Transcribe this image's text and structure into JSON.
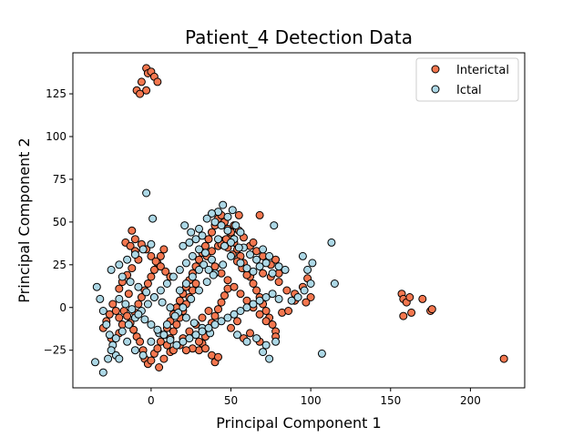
{
  "chart_data": {
    "type": "scatter",
    "title": "Patient_4 Detection Data",
    "xlabel": "Principal Component 1",
    "ylabel": "Principal Component 2",
    "xlim": [
      -49,
      234
    ],
    "ylim": [
      -47,
      149
    ],
    "xticks": [
      0,
      50,
      100,
      150,
      200
    ],
    "yticks": [
      -25,
      0,
      25,
      50,
      75,
      100,
      125
    ],
    "grid": false,
    "legend_position": "top-right",
    "series": [
      {
        "name": "Interictal",
        "color": "#f4774f",
        "points": [
          [
            -3,
            140
          ],
          [
            -2,
            137
          ],
          [
            0,
            138
          ],
          [
            2,
            135
          ],
          [
            4,
            132
          ],
          [
            -6,
            132
          ],
          [
            -9,
            127
          ],
          [
            -3,
            127
          ],
          [
            -7,
            125
          ],
          [
            -17,
            -2
          ],
          [
            -15,
            -5
          ],
          [
            -13,
            -9
          ],
          [
            -11,
            -13
          ],
          [
            -9,
            -17
          ],
          [
            -7,
            -20
          ],
          [
            -5,
            -25
          ],
          [
            -4,
            -30
          ],
          [
            -2,
            -33
          ],
          [
            0,
            -31
          ],
          [
            2,
            -27
          ],
          [
            4,
            -24
          ],
          [
            6,
            -20
          ],
          [
            8,
            -16
          ],
          [
            10,
            -12
          ],
          [
            12,
            -8
          ],
          [
            14,
            -4
          ],
          [
            16,
            0
          ],
          [
            18,
            4
          ],
          [
            20,
            8
          ],
          [
            22,
            12
          ],
          [
            24,
            16
          ],
          [
            26,
            20
          ],
          [
            28,
            24
          ],
          [
            30,
            28
          ],
          [
            32,
            32
          ],
          [
            34,
            36
          ],
          [
            36,
            40
          ],
          [
            38,
            44
          ],
          [
            40,
            48
          ],
          [
            42,
            52
          ],
          [
            44,
            54
          ],
          [
            46,
            50
          ],
          [
            48,
            46
          ],
          [
            50,
            42
          ],
          [
            52,
            38
          ],
          [
            54,
            34
          ],
          [
            56,
            30
          ],
          [
            58,
            26
          ],
          [
            60,
            22
          ],
          [
            62,
            18
          ],
          [
            64,
            14
          ],
          [
            66,
            10
          ],
          [
            68,
            6
          ],
          [
            70,
            2
          ],
          [
            72,
            -2
          ],
          [
            74,
            -6
          ],
          [
            76,
            -10
          ],
          [
            78,
            -14
          ],
          [
            -10,
            -3
          ],
          [
            -8,
            2
          ],
          [
            -6,
            6
          ],
          [
            -4,
            10
          ],
          [
            -2,
            14
          ],
          [
            0,
            18
          ],
          [
            2,
            22
          ],
          [
            4,
            26
          ],
          [
            6,
            30
          ],
          [
            8,
            34
          ],
          [
            10,
            -22
          ],
          [
            12,
            -18
          ],
          [
            14,
            -14
          ],
          [
            16,
            -10
          ],
          [
            18,
            -6
          ],
          [
            20,
            -2
          ],
          [
            22,
            2
          ],
          [
            24,
            6
          ],
          [
            26,
            10
          ],
          [
            28,
            14
          ],
          [
            30,
            -25
          ],
          [
            32,
            -21
          ],
          [
            34,
            -17
          ],
          [
            36,
            -13
          ],
          [
            38,
            -9
          ],
          [
            40,
            -5
          ],
          [
            42,
            -1
          ],
          [
            44,
            3
          ],
          [
            46,
            7
          ],
          [
            48,
            11
          ],
          [
            -18,
            -10
          ],
          [
            -20,
            -6
          ],
          [
            -22,
            -2
          ],
          [
            -24,
            2
          ],
          [
            -26,
            -4
          ],
          [
            -28,
            -8
          ],
          [
            -30,
            -12
          ],
          [
            -25,
            -18
          ],
          [
            -20,
            -15
          ],
          [
            5,
            -35
          ],
          [
            8,
            -30
          ],
          [
            12,
            -26
          ],
          [
            16,
            -22
          ],
          [
            20,
            -18
          ],
          [
            24,
            -14
          ],
          [
            28,
            -10
          ],
          [
            32,
            -6
          ],
          [
            36,
            -2
          ],
          [
            -16,
            38
          ],
          [
            -13,
            36
          ],
          [
            -10,
            33
          ],
          [
            -8,
            28
          ],
          [
            -12,
            23
          ],
          [
            -15,
            19
          ],
          [
            -18,
            15
          ],
          [
            -20,
            11
          ],
          [
            -14,
            8
          ],
          [
            -12,
            45
          ],
          [
            -10,
            40
          ],
          [
            -6,
            37
          ],
          [
            -3,
            34
          ],
          [
            0,
            30
          ],
          [
            3,
            27
          ],
          [
            6,
            24
          ],
          [
            9,
            21
          ],
          [
            12,
            18
          ],
          [
            40,
            24
          ],
          [
            44,
            20
          ],
          [
            48,
            16
          ],
          [
            52,
            12
          ],
          [
            56,
            8
          ],
          [
            60,
            4
          ],
          [
            64,
            0
          ],
          [
            68,
            -4
          ],
          [
            72,
            -8
          ],
          [
            35,
            30
          ],
          [
            38,
            33
          ],
          [
            42,
            36
          ],
          [
            45,
            39
          ],
          [
            48,
            35
          ],
          [
            51,
            31
          ],
          [
            54,
            27
          ],
          [
            57,
            23
          ],
          [
            60,
            19
          ],
          [
            62,
            36
          ],
          [
            64,
            38
          ],
          [
            66,
            33
          ],
          [
            58,
            41
          ],
          [
            55,
            45
          ],
          [
            52,
            48
          ],
          [
            50,
            44
          ],
          [
            47,
            40
          ],
          [
            44,
            37
          ],
          [
            70,
            20
          ],
          [
            75,
            18
          ],
          [
            80,
            15
          ],
          [
            85,
            10
          ],
          [
            90,
            8
          ],
          [
            95,
            12
          ],
          [
            98,
            17
          ],
          [
            100,
            6
          ],
          [
            97,
            3
          ],
          [
            82,
            -3
          ],
          [
            86,
            -2
          ],
          [
            90,
            4
          ],
          [
            78,
            -17
          ],
          [
            68,
            -20
          ],
          [
            62,
            -15
          ],
          [
            58,
            -18
          ],
          [
            54,
            -8
          ],
          [
            50,
            -12
          ],
          [
            30,
            -20
          ],
          [
            34,
            -24
          ],
          [
            38,
            -28
          ],
          [
            40,
            -32
          ],
          [
            42,
            -29
          ],
          [
            26,
            -24
          ],
          [
            22,
            -25
          ],
          [
            18,
            -22
          ],
          [
            14,
            -25
          ],
          [
            68,
            54
          ],
          [
            55,
            54
          ],
          [
            70,
            30
          ],
          [
            75,
            25
          ],
          [
            78,
            28
          ],
          [
            80,
            20
          ],
          [
            157,
            8
          ],
          [
            158,
            5
          ],
          [
            160,
            3
          ],
          [
            162,
            6
          ],
          [
            158,
            -5
          ],
          [
            163,
            -3
          ],
          [
            170,
            5
          ],
          [
            175,
            -2
          ],
          [
            176,
            -1
          ],
          [
            221,
            -30
          ]
        ]
      },
      {
        "name": "Ictal",
        "color": "#add8e6",
        "points": [
          [
            -3,
            67
          ],
          [
            1,
            52
          ],
          [
            45,
            60
          ],
          [
            51,
            57
          ],
          [
            42,
            56
          ],
          [
            48,
            53
          ],
          [
            38,
            55
          ],
          [
            35,
            52
          ],
          [
            40,
            50
          ],
          [
            30,
            46
          ],
          [
            25,
            44
          ],
          [
            21,
            48
          ],
          [
            32,
            42
          ],
          [
            28,
            40
          ],
          [
            24,
            38
          ],
          [
            20,
            36
          ],
          [
            44,
            48
          ],
          [
            48,
            45
          ],
          [
            53,
            48
          ],
          [
            56,
            44
          ],
          [
            52,
            40
          ],
          [
            50,
            38
          ],
          [
            58,
            35
          ],
          [
            62,
            31
          ],
          [
            66,
            28
          ],
          [
            70,
            34
          ],
          [
            74,
            30
          ],
          [
            77,
            48
          ],
          [
            80,
            24
          ],
          [
            84,
            22
          ],
          [
            76,
            20
          ],
          [
            72,
            26
          ],
          [
            68,
            24
          ],
          [
            64,
            21
          ],
          [
            60,
            23
          ],
          [
            56,
            26
          ],
          [
            -34,
            12
          ],
          [
            -32,
            5
          ],
          [
            -30,
            -2
          ],
          [
            -28,
            -10
          ],
          [
            -26,
            -16
          ],
          [
            -24,
            -22
          ],
          [
            -22,
            -28
          ],
          [
            -20,
            -30
          ],
          [
            -35,
            -32
          ],
          [
            -30,
            -38
          ],
          [
            -27,
            -30
          ],
          [
            -25,
            -25
          ],
          [
            -22,
            -18
          ],
          [
            -18,
            -14
          ],
          [
            -14,
            -10
          ],
          [
            -10,
            -6
          ],
          [
            -6,
            -2
          ],
          [
            -2,
            2
          ],
          [
            2,
            6
          ],
          [
            6,
            10
          ],
          [
            10,
            14
          ],
          [
            14,
            18
          ],
          [
            18,
            22
          ],
          [
            22,
            26
          ],
          [
            26,
            30
          ],
          [
            30,
            34
          ],
          [
            -25,
            22
          ],
          [
            -20,
            25
          ],
          [
            -15,
            28
          ],
          [
            -10,
            31
          ],
          [
            -5,
            34
          ],
          [
            0,
            37
          ],
          [
            -18,
            18
          ],
          [
            -13,
            15
          ],
          [
            -8,
            12
          ],
          [
            -3,
            9
          ],
          [
            2,
            6
          ],
          [
            7,
            3
          ],
          [
            12,
            0
          ],
          [
            17,
            -3
          ],
          [
            22,
            -6
          ],
          [
            27,
            -9
          ],
          [
            32,
            -12
          ],
          [
            37,
            -15
          ],
          [
            -15,
            -20
          ],
          [
            -10,
            -25
          ],
          [
            -5,
            -28
          ],
          [
            0,
            -20
          ],
          [
            5,
            -15
          ],
          [
            10,
            -10
          ],
          [
            15,
            -5
          ],
          [
            20,
            0
          ],
          [
            25,
            5
          ],
          [
            30,
            10
          ],
          [
            35,
            15
          ],
          [
            40,
            20
          ],
          [
            45,
            25
          ],
          [
            50,
            30
          ],
          [
            55,
            35
          ],
          [
            33,
            25
          ],
          [
            36,
            22
          ],
          [
            39,
            19
          ],
          [
            -20,
            5
          ],
          [
            -16,
            2
          ],
          [
            -12,
            -1
          ],
          [
            -8,
            -4
          ],
          [
            -4,
            -7
          ],
          [
            0,
            -10
          ],
          [
            4,
            -13
          ],
          [
            8,
            -16
          ],
          [
            12,
            -19
          ],
          [
            16,
            -22
          ],
          [
            20,
            -20
          ],
          [
            24,
            -18
          ],
          [
            28,
            -16
          ],
          [
            32,
            -14
          ],
          [
            36,
            -12
          ],
          [
            40,
            -10
          ],
          [
            44,
            -8
          ],
          [
            48,
            -6
          ],
          [
            52,
            -4
          ],
          [
            56,
            -2
          ],
          [
            60,
            0
          ],
          [
            64,
            2
          ],
          [
            68,
            4
          ],
          [
            72,
            6
          ],
          [
            76,
            8
          ],
          [
            80,
            5
          ],
          [
            78,
            -20
          ],
          [
            72,
            -22
          ],
          [
            66,
            -18
          ],
          [
            60,
            -20
          ],
          [
            54,
            -16
          ],
          [
            74,
            -30
          ],
          [
            70,
            -26
          ],
          [
            88,
            4
          ],
          [
            92,
            6
          ],
          [
            96,
            10
          ],
          [
            100,
            14
          ],
          [
            98,
            22
          ],
          [
            101,
            26
          ],
          [
            95,
            30
          ],
          [
            113,
            38
          ],
          [
            115,
            14
          ],
          [
            107,
            -27
          ],
          [
            42,
            40
          ],
          [
            46,
            36
          ],
          [
            38,
            28
          ],
          [
            34,
            32
          ],
          [
            30,
            22
          ],
          [
            26,
            18
          ],
          [
            22,
            14
          ],
          [
            18,
            10
          ]
        ]
      }
    ]
  }
}
